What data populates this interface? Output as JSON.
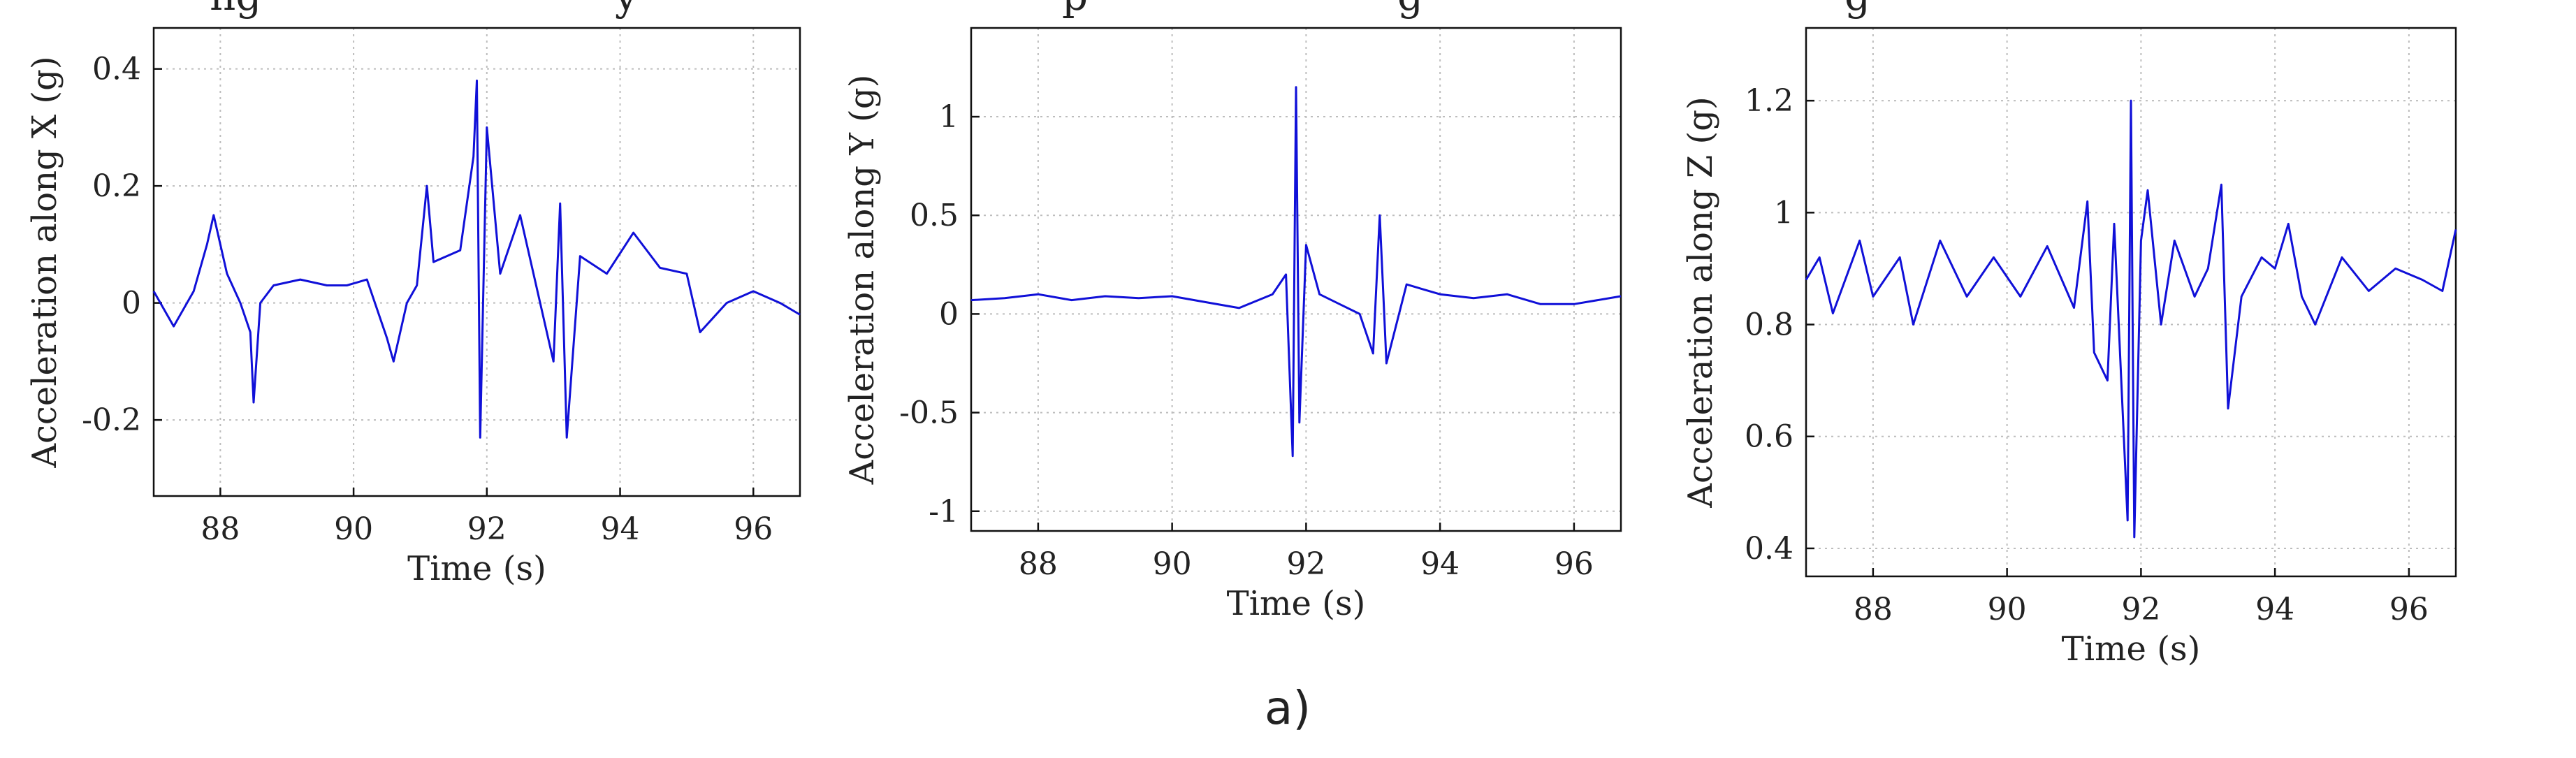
{
  "caption": "a)",
  "cutoff_text": [
    "ng",
    "y",
    "p",
    "g",
    "g"
  ],
  "chart_data": [
    {
      "type": "line",
      "xlabel": "Time (s)",
      "ylabel": "Acceleration along X (g)",
      "xlim": [
        87,
        96.7
      ],
      "ylim": [
        -0.33,
        0.47
      ],
      "xticks": [
        88,
        90,
        92,
        94,
        96
      ],
      "yticks": [
        -0.2,
        0,
        0.2,
        0.4
      ],
      "ytick_labels": [
        "-0.2",
        "0",
        "0.2",
        "0.4"
      ],
      "grid": true,
      "color": "#1010d8",
      "x": [
        87.0,
        87.3,
        87.6,
        87.8,
        87.9,
        88.1,
        88.3,
        88.45,
        88.5,
        88.6,
        88.8,
        89.2,
        89.6,
        89.9,
        90.2,
        90.5,
        90.6,
        90.8,
        90.95,
        91.1,
        91.2,
        91.4,
        91.6,
        91.8,
        91.85,
        91.9,
        92.0,
        92.2,
        92.5,
        92.8,
        93.0,
        93.1,
        93.2,
        93.4,
        93.8,
        94.2,
        94.6,
        95.0,
        95.2,
        95.6,
        96.0,
        96.4,
        96.7
      ],
      "y": [
        0.02,
        -0.04,
        0.02,
        0.1,
        0.15,
        0.05,
        0.0,
        -0.05,
        -0.17,
        0.0,
        0.03,
        0.04,
        0.03,
        0.03,
        0.04,
        -0.06,
        -0.1,
        0.0,
        0.03,
        0.2,
        0.07,
        0.08,
        0.09,
        0.25,
        0.38,
        -0.23,
        0.3,
        0.05,
        0.15,
        0.0,
        -0.1,
        0.17,
        -0.23,
        0.08,
        0.05,
        0.12,
        0.06,
        0.05,
        -0.05,
        0.0,
        0.02,
        0.0,
        -0.02
      ]
    },
    {
      "type": "line",
      "xlabel": "Time (s)",
      "ylabel": "Acceleration along Y (g)",
      "xlim": [
        87,
        96.7
      ],
      "ylim": [
        -1.1,
        1.45
      ],
      "xticks": [
        88,
        90,
        92,
        94,
        96
      ],
      "yticks": [
        -1,
        -0.5,
        0,
        0.5,
        1
      ],
      "ytick_labels": [
        "-1",
        "-0.5",
        "0",
        "0.5",
        "1"
      ],
      "grid": true,
      "color": "#1010d8",
      "x": [
        87.0,
        87.5,
        88.0,
        88.5,
        89.0,
        89.5,
        90.0,
        90.5,
        91.0,
        91.5,
        91.7,
        91.8,
        91.85,
        91.9,
        92.0,
        92.2,
        92.5,
        92.8,
        93.0,
        93.1,
        93.2,
        93.5,
        94.0,
        94.5,
        95.0,
        95.5,
        96.0,
        96.7
      ],
      "y": [
        0.07,
        0.08,
        0.1,
        0.07,
        0.09,
        0.08,
        0.09,
        0.06,
        0.03,
        0.1,
        0.2,
        -0.72,
        1.15,
        -0.55,
        0.35,
        0.1,
        0.05,
        0.0,
        -0.2,
        0.5,
        -0.25,
        0.15,
        0.1,
        0.08,
        0.1,
        0.05,
        0.05,
        0.09
      ]
    },
    {
      "type": "line",
      "xlabel": "Time (s)",
      "ylabel": "Acceleration along Z (g)",
      "xlim": [
        87,
        96.7
      ],
      "ylim": [
        0.35,
        1.33
      ],
      "xticks": [
        88,
        90,
        92,
        94,
        96
      ],
      "yticks": [
        0.4,
        0.6,
        0.8,
        1,
        1.2
      ],
      "ytick_labels": [
        "0.4",
        "0.6",
        "0.8",
        "1",
        "1.2"
      ],
      "grid": true,
      "color": "#1010d8",
      "x": [
        87.0,
        87.2,
        87.4,
        87.8,
        88.0,
        88.4,
        88.6,
        89.0,
        89.4,
        89.8,
        90.2,
        90.6,
        91.0,
        91.2,
        91.3,
        91.5,
        91.6,
        91.8,
        91.85,
        91.9,
        92.0,
        92.1,
        92.3,
        92.5,
        92.8,
        93.0,
        93.2,
        93.3,
        93.5,
        93.8,
        94.0,
        94.2,
        94.4,
        94.6,
        95.0,
        95.4,
        95.8,
        96.2,
        96.5,
        96.7
      ],
      "y": [
        0.88,
        0.92,
        0.82,
        0.95,
        0.85,
        0.92,
        0.8,
        0.95,
        0.85,
        0.92,
        0.85,
        0.94,
        0.83,
        1.02,
        0.75,
        0.7,
        0.98,
        0.45,
        1.2,
        0.42,
        0.95,
        1.04,
        0.8,
        0.95,
        0.85,
        0.9,
        1.05,
        0.65,
        0.85,
        0.92,
        0.9,
        0.98,
        0.85,
        0.8,
        0.92,
        0.86,
        0.9,
        0.88,
        0.86,
        0.97
      ]
    }
  ]
}
